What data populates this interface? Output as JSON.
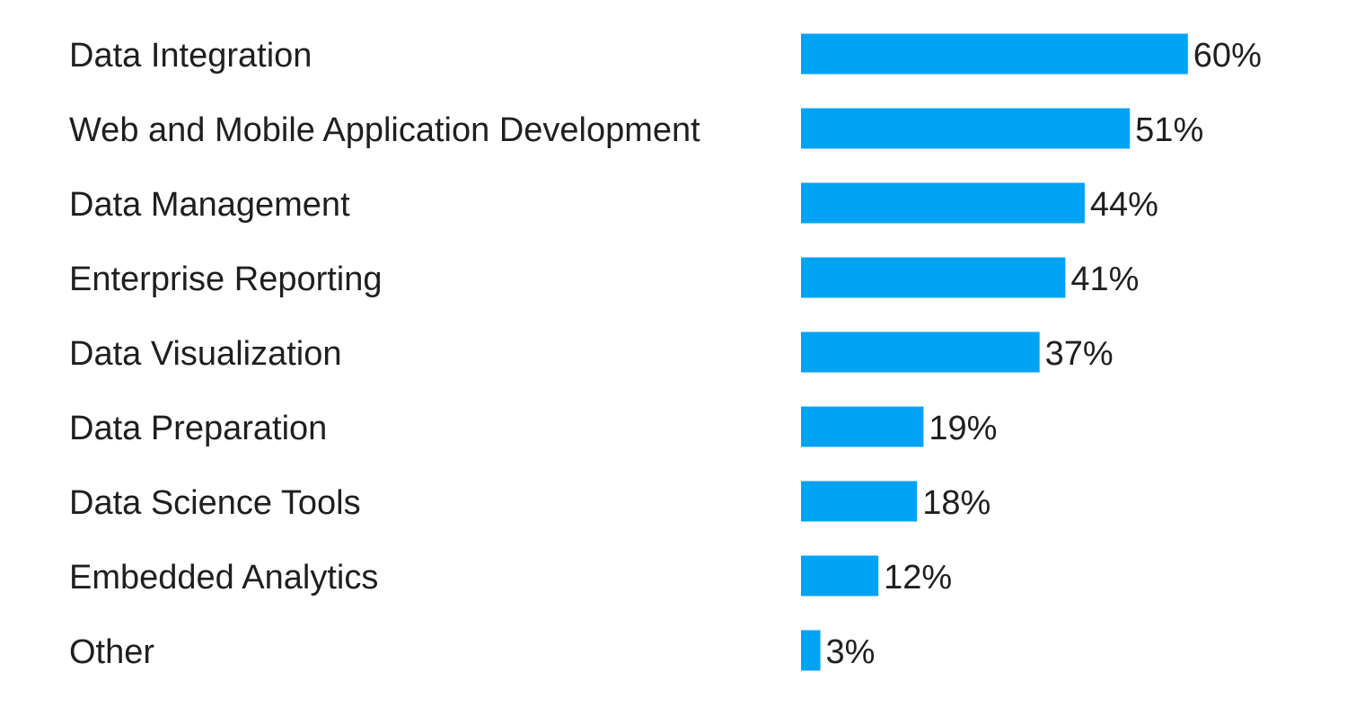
{
  "chart_data": {
    "type": "bar",
    "orientation": "horizontal",
    "categories": [
      "Data Integration",
      "Web and Mobile Application Development",
      "Data Management",
      "Enterprise Reporting",
      "Data Visualization",
      "Data Preparation",
      "Data Science Tools",
      "Embedded Analytics",
      "Other"
    ],
    "values": [
      60,
      51,
      44,
      41,
      37,
      19,
      18,
      12,
      3
    ],
    "value_labels": [
      "60%",
      "51%",
      "44%",
      "41%",
      "37%",
      "19%",
      "18%",
      "12%",
      "3%"
    ],
    "unit": "%",
    "bar_color": "#00a2f3",
    "title": "",
    "xlabel": "",
    "ylabel": "",
    "grid": false,
    "legend": "none"
  }
}
